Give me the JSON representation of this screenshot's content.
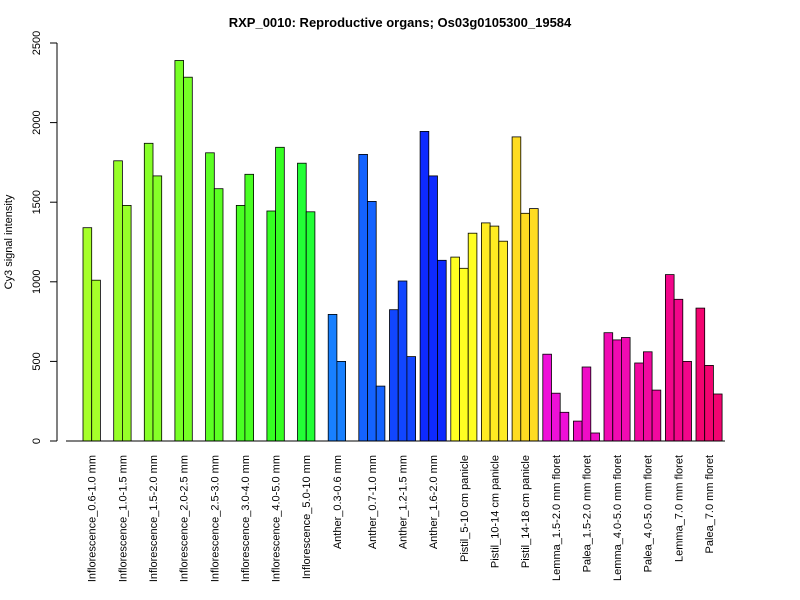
{
  "chart_data": {
    "type": "bar",
    "title": "RXP_0010: Reproductive organs; Os03g0105300_19584",
    "xlabel": "",
    "ylabel": "Cy3 signal intensity",
    "ylim": [
      0,
      2500
    ],
    "yticks": [
      0,
      500,
      1000,
      1500,
      2000,
      2500
    ],
    "grid": false,
    "legend": "none",
    "groups": [
      {
        "label": "Inflorescence_0.6-1.0 mm",
        "color": "#a6ff2a",
        "values": [
          1340,
          1010
        ]
      },
      {
        "label": "Inflorescence_1.0-1.5 mm",
        "color": "#97ff29",
        "values": [
          1760,
          1480
        ]
      },
      {
        "label": "Inflorescence_1.5-2.0 mm",
        "color": "#86ff28",
        "values": [
          1870,
          1665
        ]
      },
      {
        "label": "Inflorescence_2.0-2.5 mm",
        "color": "#76ff26",
        "values": [
          2390,
          2285
        ]
      },
      {
        "label": "Inflorescence_2.5-3.0 mm",
        "color": "#5cff24",
        "values": [
          1810,
          1585
        ]
      },
      {
        "label": "Inflorescence_3.0-4.0 mm",
        "color": "#49ff23",
        "values": [
          1480,
          1675
        ]
      },
      {
        "label": "Inflorescence_4.0-5.0 mm",
        "color": "#35ff22",
        "values": [
          1445,
          1845
        ]
      },
      {
        "label": "Inflorescence_5.0-10 mm",
        "color": "#22ff36",
        "values": [
          1745,
          1440
        ]
      },
      {
        "label": "Anther_0.3-0.6 mm",
        "color": "#1880ff",
        "values": [
          795,
          500
        ]
      },
      {
        "label": "Anther_0.7-1.0 mm",
        "color": "#1463ff",
        "values": [
          1800,
          1505,
          345
        ]
      },
      {
        "label": "Anther_1.2-1.5 mm",
        "color": "#1146ff",
        "values": [
          825,
          1005,
          530
        ]
      },
      {
        "label": "Anther_1.6-2.0 mm",
        "color": "#0e2aff",
        "values": [
          1945,
          1665,
          1135
        ]
      },
      {
        "label": "Pistil_5-10 cm panicle",
        "color": "#ffff22",
        "values": [
          1155,
          1085,
          1305
        ]
      },
      {
        "label": "Pistil_10-14 cm panicle",
        "color": "#ffec22",
        "values": [
          1370,
          1350,
          1255
        ]
      },
      {
        "label": "Pistil_14-18 cm panicle",
        "color": "#ffdc22",
        "values": [
          1910,
          1430,
          1460
        ]
      },
      {
        "label": "Lemma_1.5-2.0 mm floret",
        "color": "#ee10d8",
        "values": [
          545,
          300,
          180
        ]
      },
      {
        "label": "Palea_1.5-2.0 mm floret",
        "color": "#ef0dc6",
        "values": [
          125,
          465,
          50
        ]
      },
      {
        "label": "Lemma_4.0-5.0 mm floret",
        "color": "#f00bb2",
        "values": [
          680,
          635,
          650
        ]
      },
      {
        "label": "Palea_4.0-5.0 mm floret",
        "color": "#f1099f",
        "values": [
          490,
          560,
          320
        ]
      },
      {
        "label": "Lemma_7.0 mm floret",
        "color": "#f2068a",
        "values": [
          1045,
          890,
          500
        ]
      },
      {
        "label": "Palea_7.0 mm floret",
        "color": "#f20470",
        "values": [
          835,
          475,
          295
        ]
      }
    ]
  }
}
